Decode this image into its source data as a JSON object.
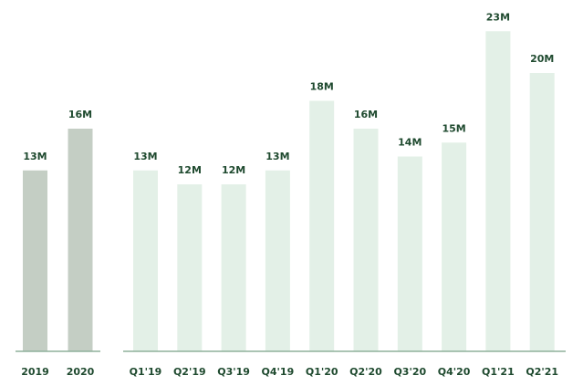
{
  "chart_data": [
    {
      "type": "bar",
      "categories": [
        "2019",
        "2020"
      ],
      "values": [
        13,
        16
      ],
      "value_labels": [
        "13M",
        "16M"
      ],
      "color": "#c4cec4"
    },
    {
      "type": "bar",
      "categories": [
        "Q1'19",
        "Q2'19",
        "Q3'19",
        "Q4'19",
        "Q1'20",
        "Q2'20",
        "Q3'20",
        "Q4'20",
        "Q1'21",
        "Q2'21"
      ],
      "values": [
        13,
        12,
        12,
        13,
        18,
        16,
        14,
        15,
        23,
        20
      ],
      "value_labels": [
        "13M",
        "12M",
        "12M",
        "13M",
        "18M",
        "16M",
        "14M",
        "15M",
        "23M",
        "20M"
      ],
      "color": "#e3f0e7"
    }
  ]
}
